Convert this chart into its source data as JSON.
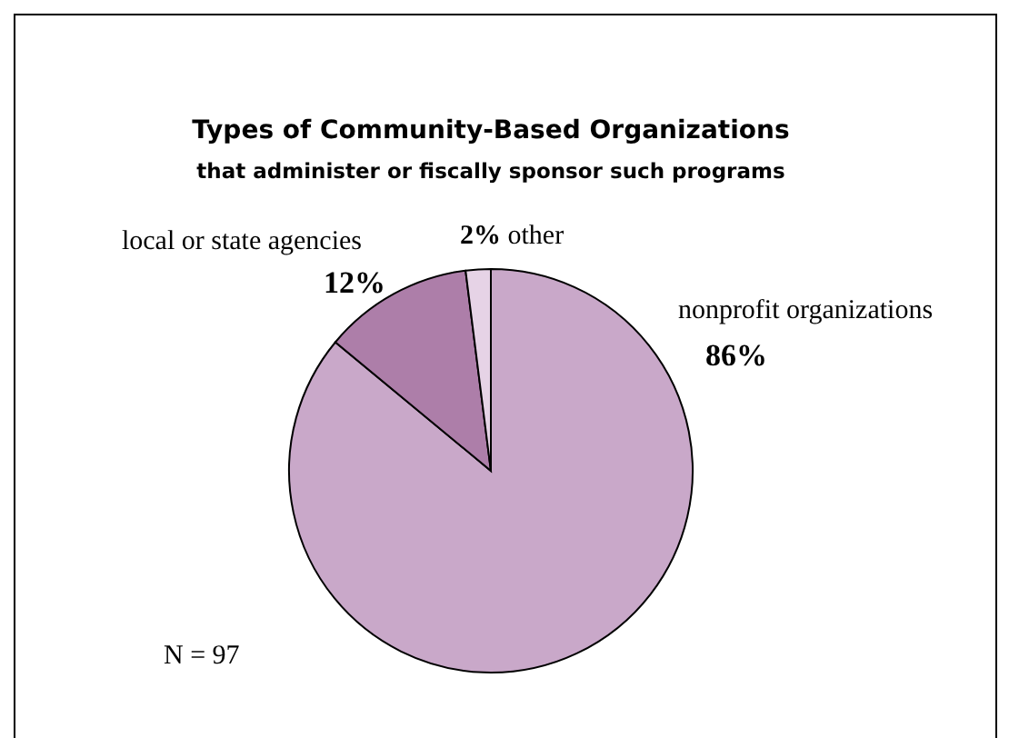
{
  "chart_data": {
    "type": "pie",
    "title": "Types of Community-Based Organizations",
    "subtitle": "that administer or fiscally sponsor such programs",
    "categories": [
      "nonprofit organizations",
      "local or state agencies",
      "other"
    ],
    "values": [
      86,
      12,
      2
    ],
    "value_labels": [
      "86%",
      "12%",
      "2%"
    ],
    "colors": [
      "#c9a8c9",
      "#ad7ea9",
      "#e6d3e6"
    ],
    "annotations": [
      "N = 97"
    ]
  }
}
